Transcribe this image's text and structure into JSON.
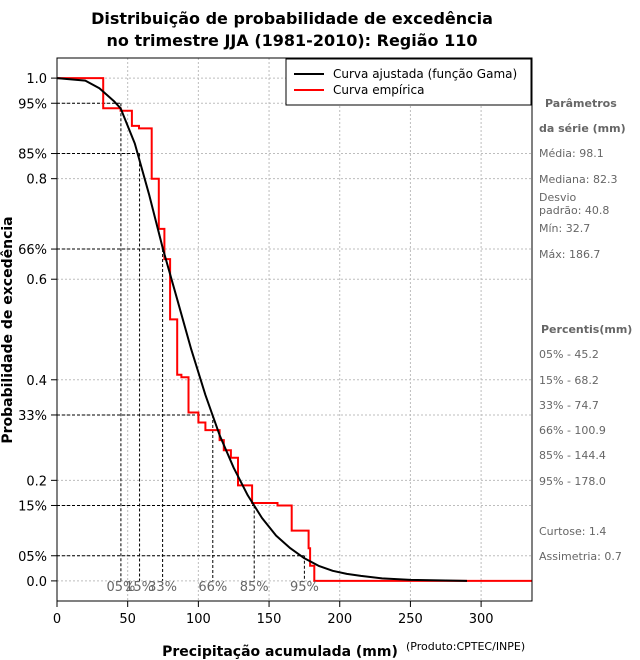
{
  "chart_data": {
    "type": "line",
    "title_line1": "Distribuição de probabilidade de excedência",
    "title_line2": "no trimestre JJA (1981-2010): Região 110",
    "xlabel": "Precipitação acumulada (mm)",
    "ylabel": "Probabilidade de excedência",
    "credit": "(Produto:CPTEC/INPE)",
    "xlim": [
      0,
      336
    ],
    "ylim": [
      -0.04,
      1.04
    ],
    "x_ticks": [
      0,
      50,
      100,
      150,
      200,
      250,
      300
    ],
    "x_tick_labels": [
      "0",
      "50",
      "100",
      "150",
      "200",
      "250",
      "300"
    ],
    "y_ticks": [
      0.0,
      0.05,
      0.15,
      0.2,
      0.33,
      0.4,
      0.6,
      0.66,
      0.8,
      0.85,
      0.95,
      1.0
    ],
    "y_tick_labels": [
      "0.0",
      "05%",
      "15%",
      "0.2",
      "33%",
      "0.4",
      "0.6",
      "66%",
      "0.8",
      "85%",
      "95%",
      "1.0"
    ],
    "legend": [
      {
        "label": "Curva ajustada (função Gama)",
        "color": "#000000"
      },
      {
        "label": "Curva empírica",
        "color": "#ff0000"
      }
    ],
    "fitted_curve": {
      "name": "Curva ajustada (função Gama)",
      "color": "#000000",
      "x": [
        0,
        20,
        30,
        40,
        45,
        55,
        65,
        75,
        85,
        95,
        105,
        115,
        125,
        135,
        145,
        155,
        165,
        175,
        185,
        195,
        205,
        215,
        230,
        250,
        270,
        290
      ],
      "y": [
        1.0,
        0.995,
        0.98,
        0.955,
        0.94,
        0.87,
        0.77,
        0.66,
        0.56,
        0.46,
        0.37,
        0.29,
        0.225,
        0.17,
        0.125,
        0.09,
        0.065,
        0.045,
        0.03,
        0.02,
        0.014,
        0.01,
        0.005,
        0.002,
        0.001,
        0.0
      ]
    },
    "empirical_curve": {
      "name": "Curva empírica",
      "color": "#ff0000",
      "steps": [
        [
          0,
          1.0
        ],
        [
          32.7,
          1.0
        ],
        [
          32.7,
          0.94
        ],
        [
          45,
          0.94
        ],
        [
          45,
          0.935
        ],
        [
          53,
          0.935
        ],
        [
          53,
          0.905
        ],
        [
          58,
          0.905
        ],
        [
          58,
          0.9
        ],
        [
          67,
          0.9
        ],
        [
          67,
          0.8
        ],
        [
          72,
          0.8
        ],
        [
          72,
          0.7
        ],
        [
          76,
          0.7
        ],
        [
          76,
          0.64
        ],
        [
          80,
          0.64
        ],
        [
          80,
          0.52
        ],
        [
          85,
          0.52
        ],
        [
          85,
          0.41
        ],
        [
          88,
          0.41
        ],
        [
          88,
          0.405
        ],
        [
          93,
          0.405
        ],
        [
          93,
          0.335
        ],
        [
          100,
          0.335
        ],
        [
          100,
          0.315
        ],
        [
          105,
          0.315
        ],
        [
          105,
          0.3
        ],
        [
          115,
          0.3
        ],
        [
          115,
          0.28
        ],
        [
          118,
          0.28
        ],
        [
          118,
          0.26
        ],
        [
          123,
          0.26
        ],
        [
          123,
          0.245
        ],
        [
          128,
          0.245
        ],
        [
          128,
          0.19
        ],
        [
          138,
          0.19
        ],
        [
          138,
          0.155
        ],
        [
          156,
          0.155
        ],
        [
          156,
          0.15
        ],
        [
          166,
          0.15
        ],
        [
          166,
          0.1
        ],
        [
          178,
          0.1
        ],
        [
          178,
          0.065
        ],
        [
          179,
          0.065
        ],
        [
          179,
          0.03
        ],
        [
          182,
          0.03
        ],
        [
          182,
          0.0
        ],
        [
          336,
          0.0
        ]
      ]
    },
    "percentile_guides": [
      {
        "label": "05%",
        "x": 45.2,
        "p": 0.95
      },
      {
        "label": "15%",
        "x": 58.4,
        "p": 0.85
      },
      {
        "label": "33%",
        "x": 74.7,
        "p": 0.66
      },
      {
        "label": "66%",
        "x": 110.2,
        "p": 0.33
      },
      {
        "label": "85%",
        "x": 139.5,
        "p": 0.15
      },
      {
        "label": "95%",
        "x": 175.0,
        "p": 0.05
      }
    ]
  },
  "side_panel": {
    "params_title_1": "Parâmetros",
    "params_title_2": "da série (mm)",
    "media": "Média: 98.1",
    "mediana": "Mediana: 82.3",
    "desvio_1": "Desvio",
    "desvio_2": "padrão: 40.8",
    "min": "Mín: 32.7",
    "max": "Máx: 186.7",
    "percentis_title": "Percentis(mm)",
    "p05": "05% - 45.2",
    "p15": "15% - 68.2",
    "p33": "33% - 74.7",
    "p66": "66% - 100.9",
    "p85": "85% - 144.4",
    "p95": "95% - 178.0",
    "curtose": "Curtose: 1.4",
    "assimetria": "Assimetria: 0.7"
  }
}
